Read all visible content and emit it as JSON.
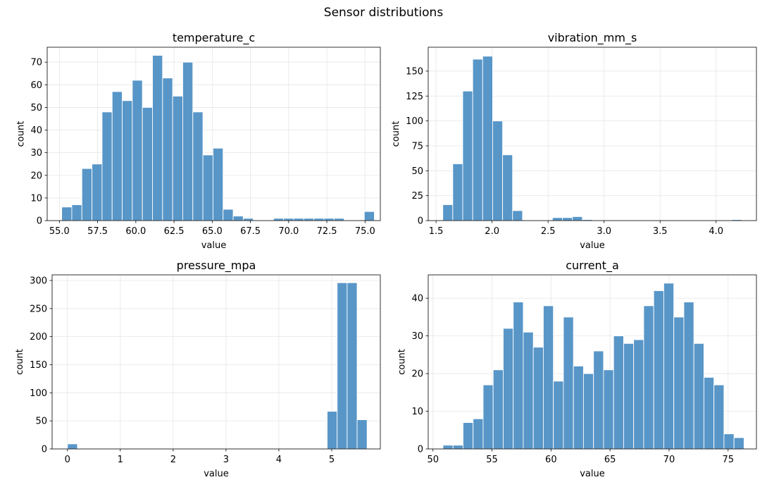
{
  "figure": {
    "suptitle": "Sensor distributions"
  },
  "colors": {
    "bar_fill": "#5896c8",
    "bar_edge": "#ffffff",
    "grid": "#e6e6e6",
    "axis": "#000000"
  },
  "chart_data": [
    {
      "type": "bar",
      "title": "temperature_c",
      "xlabel": "value",
      "ylabel": "count",
      "grid": true,
      "xlim": [
        54.2,
        76.0
      ],
      "ylim": [
        0,
        76.6
      ],
      "x_ticks": [
        55.0,
        57.5,
        60.0,
        62.5,
        65.0,
        67.5,
        70.0,
        72.5,
        75.0
      ],
      "x_tick_labels": [
        "55.0",
        "57.5",
        "60.0",
        "62.5",
        "65.0",
        "67.5",
        "70.0",
        "72.5",
        "75.0"
      ],
      "y_ticks": [
        0,
        10,
        20,
        30,
        40,
        50,
        60,
        70
      ],
      "y_tick_labels": [
        "0",
        "10",
        "20",
        "30",
        "40",
        "50",
        "60",
        "70"
      ],
      "bin_edges": [
        55.15,
        55.81,
        56.47,
        57.13,
        57.79,
        58.45,
        59.11,
        59.77,
        60.43,
        61.09,
        61.75,
        62.41,
        63.07,
        63.73,
        64.39,
        65.05,
        65.71,
        66.37,
        67.03,
        67.69,
        68.35,
        69.01,
        69.67,
        70.33,
        70.99,
        71.65,
        72.31,
        72.97,
        73.63,
        74.29,
        74.95,
        75.61
      ],
      "counts": [
        6,
        7,
        23,
        25,
        48,
        57,
        53,
        62,
        50,
        73,
        63,
        55,
        70,
        48,
        29,
        32,
        5,
        2,
        1,
        0,
        0,
        1,
        1,
        1,
        1,
        1,
        1,
        1,
        0,
        0,
        4
      ]
    },
    {
      "type": "bar",
      "title": "vibration_mm_s",
      "xlabel": "value",
      "ylabel": "count",
      "grid": true,
      "xlim": [
        1.43,
        4.36
      ],
      "ylim": [
        0,
        174
      ],
      "x_ticks": [
        1.5,
        2.0,
        2.5,
        3.0,
        3.5,
        4.0
      ],
      "x_tick_labels": [
        "1.5",
        "2.0",
        "2.5",
        "3.0",
        "3.5",
        "4.0"
      ],
      "y_ticks": [
        0,
        25,
        50,
        75,
        100,
        125,
        150
      ],
      "y_tick_labels": [
        "0",
        "25",
        "50",
        "75",
        "100",
        "125",
        "150"
      ],
      "bin_edges": [
        1.56,
        1.649,
        1.738,
        1.827,
        1.916,
        2.005,
        2.094,
        2.183,
        2.272,
        2.361,
        2.45,
        2.539,
        2.628,
        2.717,
        2.806,
        2.895,
        2.984,
        3.073,
        3.162,
        3.251,
        3.34,
        3.429,
        3.518,
        3.607,
        3.696,
        3.785,
        3.874,
        3.963,
        4.052,
        4.141,
        4.23
      ],
      "counts": [
        16,
        57,
        130,
        162,
        165,
        100,
        66,
        10,
        0,
        0,
        0,
        3,
        3,
        4,
        1,
        0,
        0,
        0,
        0,
        0,
        0,
        0,
        0,
        0,
        0,
        0,
        0,
        0,
        0,
        1
      ]
    },
    {
      "type": "bar",
      "title": "pressure_mpa",
      "xlabel": "value",
      "ylabel": "count",
      "grid": true,
      "xlim": [
        -0.29,
        5.92
      ],
      "ylim": [
        0,
        310
      ],
      "x_ticks": [
        0,
        1,
        2,
        3,
        4,
        5
      ],
      "x_tick_labels": [
        "0",
        "1",
        "2",
        "3",
        "4",
        "5"
      ],
      "y_ticks": [
        0,
        50,
        100,
        150,
        200,
        250,
        300
      ],
      "y_tick_labels": [
        "0",
        "50",
        "100",
        "150",
        "200",
        "250",
        "300"
      ],
      "bin_edges": [
        0.0,
        0.189,
        0.378,
        0.567,
        0.756,
        0.945,
        1.134,
        1.323,
        1.512,
        1.701,
        1.89,
        2.079,
        2.268,
        2.457,
        2.646,
        2.835,
        3.024,
        3.213,
        3.402,
        3.591,
        3.78,
        3.969,
        4.158,
        4.347,
        4.536,
        4.725,
        4.914,
        5.103,
        5.292,
        5.481,
        5.67
      ],
      "counts": [
        9,
        0,
        0,
        0,
        0,
        0,
        0,
        0,
        0,
        0,
        0,
        0,
        0,
        0,
        0,
        0,
        0,
        0,
        0,
        0,
        0,
        0,
        0,
        0,
        0,
        0,
        67,
        296,
        296,
        52
      ]
    },
    {
      "type": "bar",
      "title": "current_a",
      "xlabel": "value",
      "ylabel": "count",
      "grid": true,
      "xlim": [
        49.6,
        77.4
      ],
      "ylim": [
        0,
        46.2
      ],
      "x_ticks": [
        50,
        55,
        60,
        65,
        70,
        75
      ],
      "x_tick_labels": [
        "50",
        "55",
        "60",
        "65",
        "70",
        "75"
      ],
      "y_ticks": [
        0,
        10,
        20,
        30,
        40
      ],
      "y_tick_labels": [
        "0",
        "10",
        "20",
        "30",
        "40"
      ],
      "bin_edges": [
        50.85,
        51.7,
        52.55,
        53.4,
        54.25,
        55.1,
        55.95,
        56.8,
        57.65,
        58.5,
        59.35,
        60.2,
        61.05,
        61.9,
        62.75,
        63.6,
        64.45,
        65.3,
        66.15,
        67.0,
        67.85,
        68.7,
        69.55,
        70.4,
        71.25,
        72.1,
        72.95,
        73.8,
        74.65,
        75.5,
        76.35
      ],
      "counts": [
        1,
        1,
        7,
        8,
        17,
        21,
        32,
        39,
        31,
        27,
        38,
        18,
        35,
        22,
        20,
        26,
        21,
        30,
        28,
        29,
        38,
        42,
        44,
        35,
        39,
        28,
        19,
        17,
        4,
        3
      ]
    }
  ]
}
